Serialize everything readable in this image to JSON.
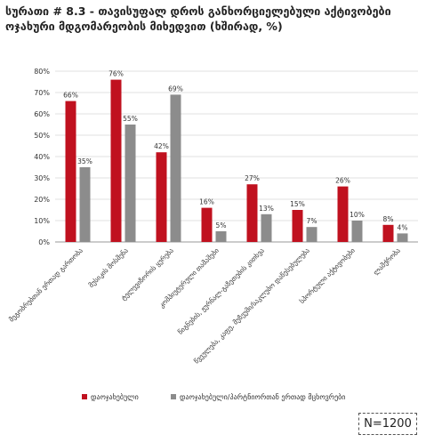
{
  "chart_data": {
    "type": "bar",
    "title": "სურათი # 8.3 - თავისუფალ დროს განხორციელებული აქტივობები ოჯახური მდგომარეობის მიხედვით (ხშირად, %)",
    "categories": [
      "მეგობრებთან ერთად გართობა",
      "მუსიკის მოსმენა",
      "ტელევიზორის ყურება",
      "კომპიუტერული თამაშები",
      "წიგნების, ჟურნალ-გაზეთების კითხვა",
      "წვეულება, კაფე, მუზეუმი/საკლუბო დაწესებულება",
      "სპორტული აქტივობები",
      "ლაშქრობა"
    ],
    "series": [
      {
        "name": "დაოჯახებული",
        "color": "#c0111f",
        "values": [
          66,
          76,
          42,
          16,
          27,
          15,
          26,
          8
        ],
        "value_labels": [
          "66%",
          "76%",
          "42%",
          "16%",
          "27%",
          "15%",
          "26%",
          "8%"
        ]
      },
      {
        "name": "დაოჯახებული/პარტნიორთან ერთად მცხოვრები",
        "color": "#8c8c8c",
        "values": [
          35,
          55,
          69,
          5,
          13,
          7,
          10,
          4
        ],
        "value_labels": [
          "35%",
          "55%",
          "69%",
          "5%",
          "13%",
          "7%",
          "10%",
          "4%"
        ]
      }
    ],
    "ylim": [
      0,
      80
    ],
    "yticks": [
      {
        "value": 0,
        "label": "0%"
      },
      {
        "value": 10,
        "label": "10%"
      },
      {
        "value": 20,
        "label": "20%"
      },
      {
        "value": 30,
        "label": "30%"
      },
      {
        "value": 40,
        "label": "40%"
      },
      {
        "value": 50,
        "label": "50%"
      },
      {
        "value": 60,
        "label": "60%"
      },
      {
        "value": 70,
        "label": "70%"
      },
      {
        "value": 80,
        "label": "80%"
      }
    ],
    "grid": true,
    "legend": "bottom",
    "annotation": "N=1200"
  }
}
